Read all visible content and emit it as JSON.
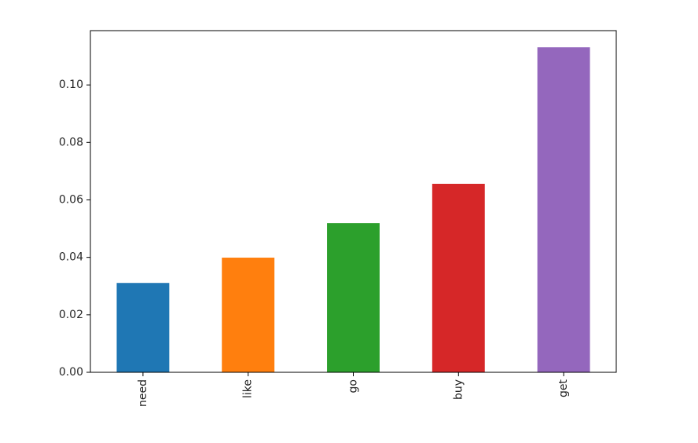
{
  "chart_data": {
    "type": "bar",
    "categories": [
      "need",
      "like",
      "go",
      "buy",
      "get"
    ],
    "values": [
      0.0311,
      0.0399,
      0.0519,
      0.0656,
      0.1131
    ],
    "colors": [
      "#1f77b4",
      "#ff7f0e",
      "#2ca02c",
      "#d62728",
      "#9467bd"
    ],
    "ylim": [
      0,
      0.1189
    ],
    "yticks": [
      {
        "value": 0,
        "label": "0.00"
      },
      {
        "value": 0.02,
        "label": "0.02"
      },
      {
        "value": 0.04,
        "label": "0.04"
      },
      {
        "value": 0.06,
        "label": "0.06"
      },
      {
        "value": 0.08,
        "label": "0.08"
      },
      {
        "value": 0.1,
        "label": "0.10"
      }
    ],
    "grid": false
  }
}
